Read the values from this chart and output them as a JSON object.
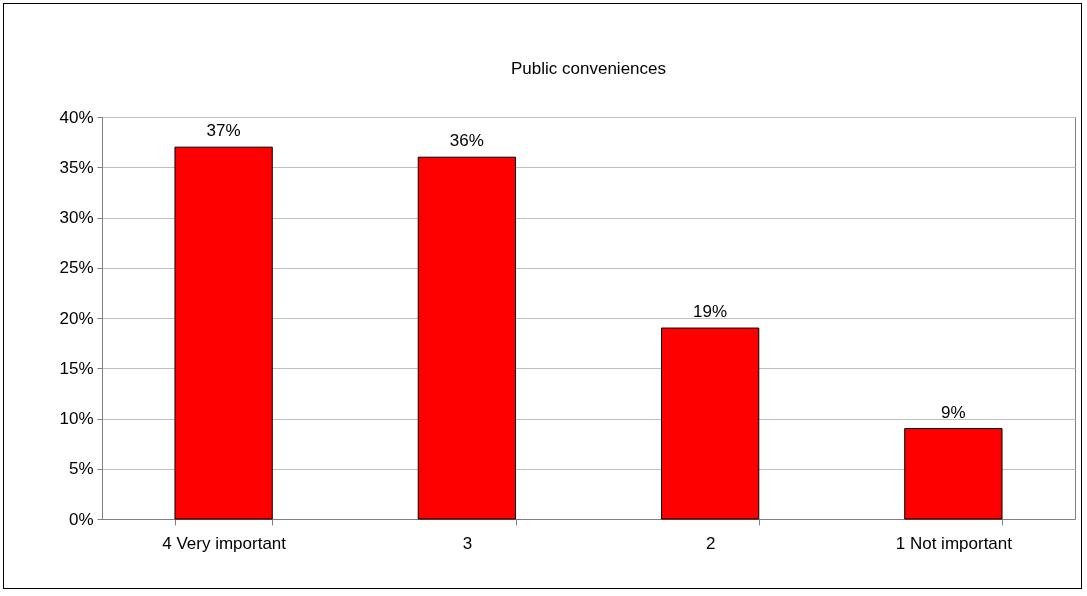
{
  "chart_data": {
    "type": "bar",
    "title": "Public conveniences",
    "categories": [
      "4 Very important",
      "3",
      "2",
      "1 Not important"
    ],
    "values": [
      37,
      36,
      19,
      9
    ],
    "value_labels": [
      "37%",
      "36%",
      "19%",
      "9%"
    ],
    "color": "#ff0000",
    "ylim": [
      0,
      40
    ],
    "yticks": [
      {
        "value": 0,
        "label": "0%"
      },
      {
        "value": 5,
        "label": "5%"
      },
      {
        "value": 10,
        "label": "10%"
      },
      {
        "value": 15,
        "label": "15%"
      },
      {
        "value": 20,
        "label": "20%"
      },
      {
        "value": 25,
        "label": "25%"
      },
      {
        "value": 30,
        "label": "30%"
      },
      {
        "value": 35,
        "label": "35%"
      },
      {
        "value": 40,
        "label": "40%"
      }
    ],
    "grid": "y"
  }
}
